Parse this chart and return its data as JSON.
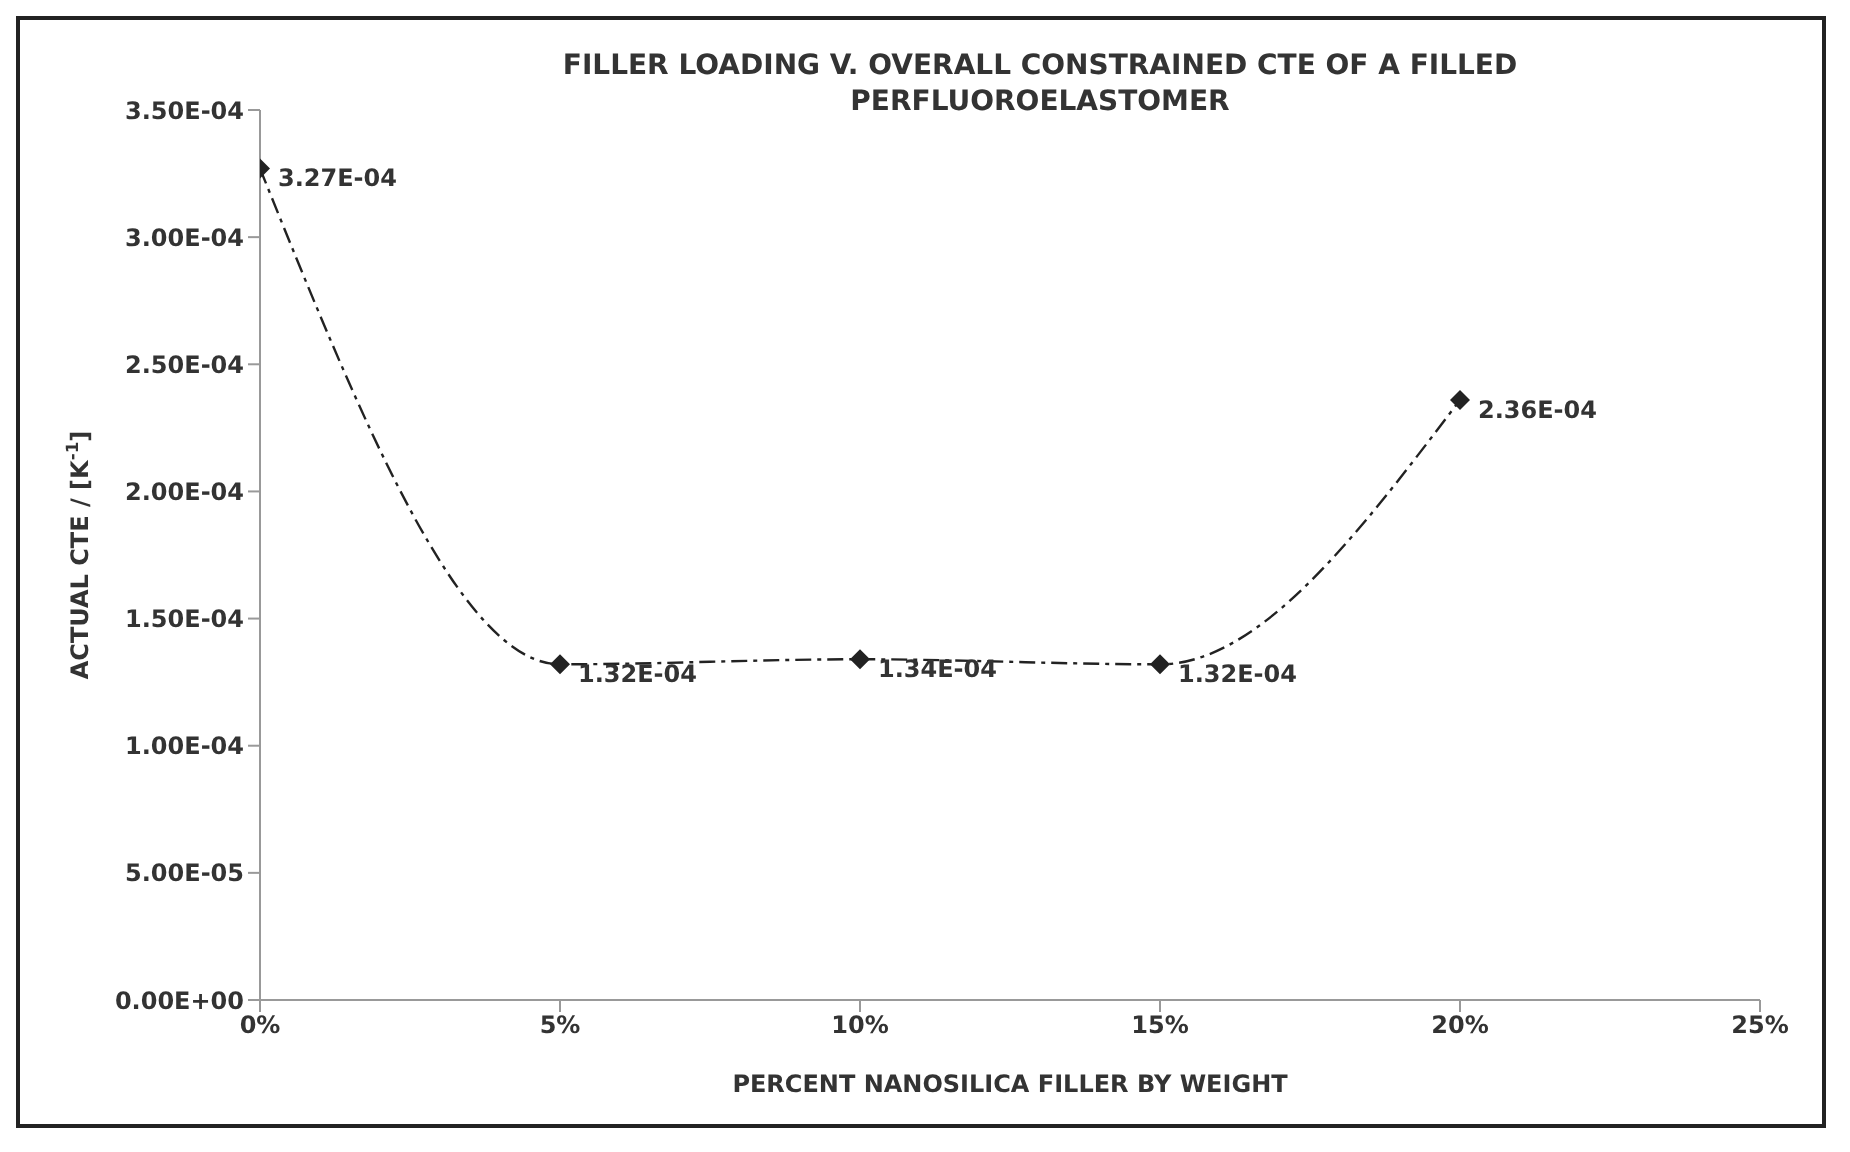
{
  "chart_data": {
    "type": "line",
    "title": "FILLER LOADING V. OVERALL CONSTRAINED CTE OF A FILLED PERFLUOROELASTOMER",
    "xlabel": "PERCENT NANOSILICA FILLER BY WEIGHT",
    "ylabel": "ACTUAL CTE / [K$^{-1}$]",
    "x": [
      0,
      5,
      10,
      15,
      20
    ],
    "series": [
      {
        "color": "#222222",
        "values": [
          0.000327,
          0.000132,
          0.000134,
          0.000132,
          0.000236
        ],
        "value_labels": [
          "3.27E-04",
          "1.32E-04",
          "1.34E-04",
          "1.32E-04",
          "2.36E-04"
        ]
      }
    ],
    "xlim": [
      0,
      25
    ],
    "xticks": [
      {
        "value": 0,
        "label": "0%"
      },
      {
        "value": 5,
        "label": "5%"
      },
      {
        "value": 10,
        "label": "10%"
      },
      {
        "value": 15,
        "label": "15%"
      },
      {
        "value": 20,
        "label": "20%"
      },
      {
        "value": 25,
        "label": "25%"
      }
    ],
    "ylim": [
      0,
      0.00035
    ],
    "yticks": [
      {
        "value": 0,
        "label": "0.00E+00"
      },
      {
        "value": 5e-05,
        "label": "5.00E-05"
      },
      {
        "value": 0.0001,
        "label": "1.00E-04"
      },
      {
        "value": 0.00015,
        "label": "1.50E-04"
      },
      {
        "value": 0.0002,
        "label": "2.00E-04"
      },
      {
        "value": 0.00025,
        "label": "2.50E-04"
      },
      {
        "value": 0.0003,
        "label": "3.00E-04"
      },
      {
        "value": 0.00035,
        "label": "3.50E-04"
      }
    ],
    "legend": false,
    "marker": "diamond",
    "line_style": "dashed"
  }
}
